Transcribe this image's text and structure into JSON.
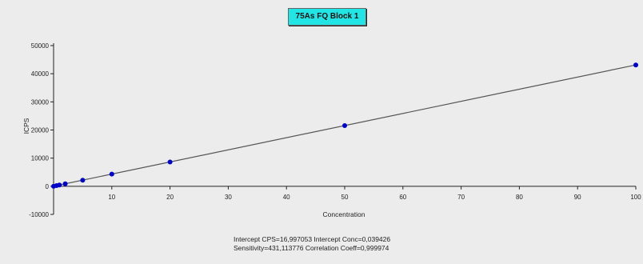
{
  "stats": {
    "line1": "Intercept CPS=16,997053  Intercept Conc=0,039426",
    "line2": "Sensitivity=431,113776  Correlation Coeff=0,999974"
  },
  "chart_data": {
    "type": "scatter",
    "title": "75As FQ Block 1",
    "xlabel": "Concentration",
    "ylabel": "ICPS",
    "xlim": [
      0,
      100
    ],
    "ylim": [
      -10000,
      50000
    ],
    "x_ticks": [
      "10",
      "20",
      "30",
      "40",
      "50",
      "60",
      "70",
      "80",
      "90",
      "100"
    ],
    "y_ticks": [
      "-10000",
      "0",
      "10000",
      "20000",
      "30000",
      "40000",
      "50000"
    ],
    "x_tick_values": [
      10,
      20,
      30,
      40,
      50,
      60,
      70,
      80,
      90,
      100
    ],
    "y_tick_values": [
      -10000,
      0,
      10000,
      20000,
      30000,
      40000,
      50000
    ],
    "grid": false,
    "legend": "none",
    "point_color": "#0000cc",
    "line_color": "#555555",
    "series": [
      {
        "x": [
          0,
          0.5,
          1,
          2,
          5,
          10,
          20,
          50,
          100
        ],
        "y": [
          0,
          230,
          450,
          880,
          2170,
          4330,
          8640,
          21560,
          43120
        ]
      }
    ],
    "fit_line": {
      "intercept": 16.997053,
      "slope": 431.113776
    }
  }
}
